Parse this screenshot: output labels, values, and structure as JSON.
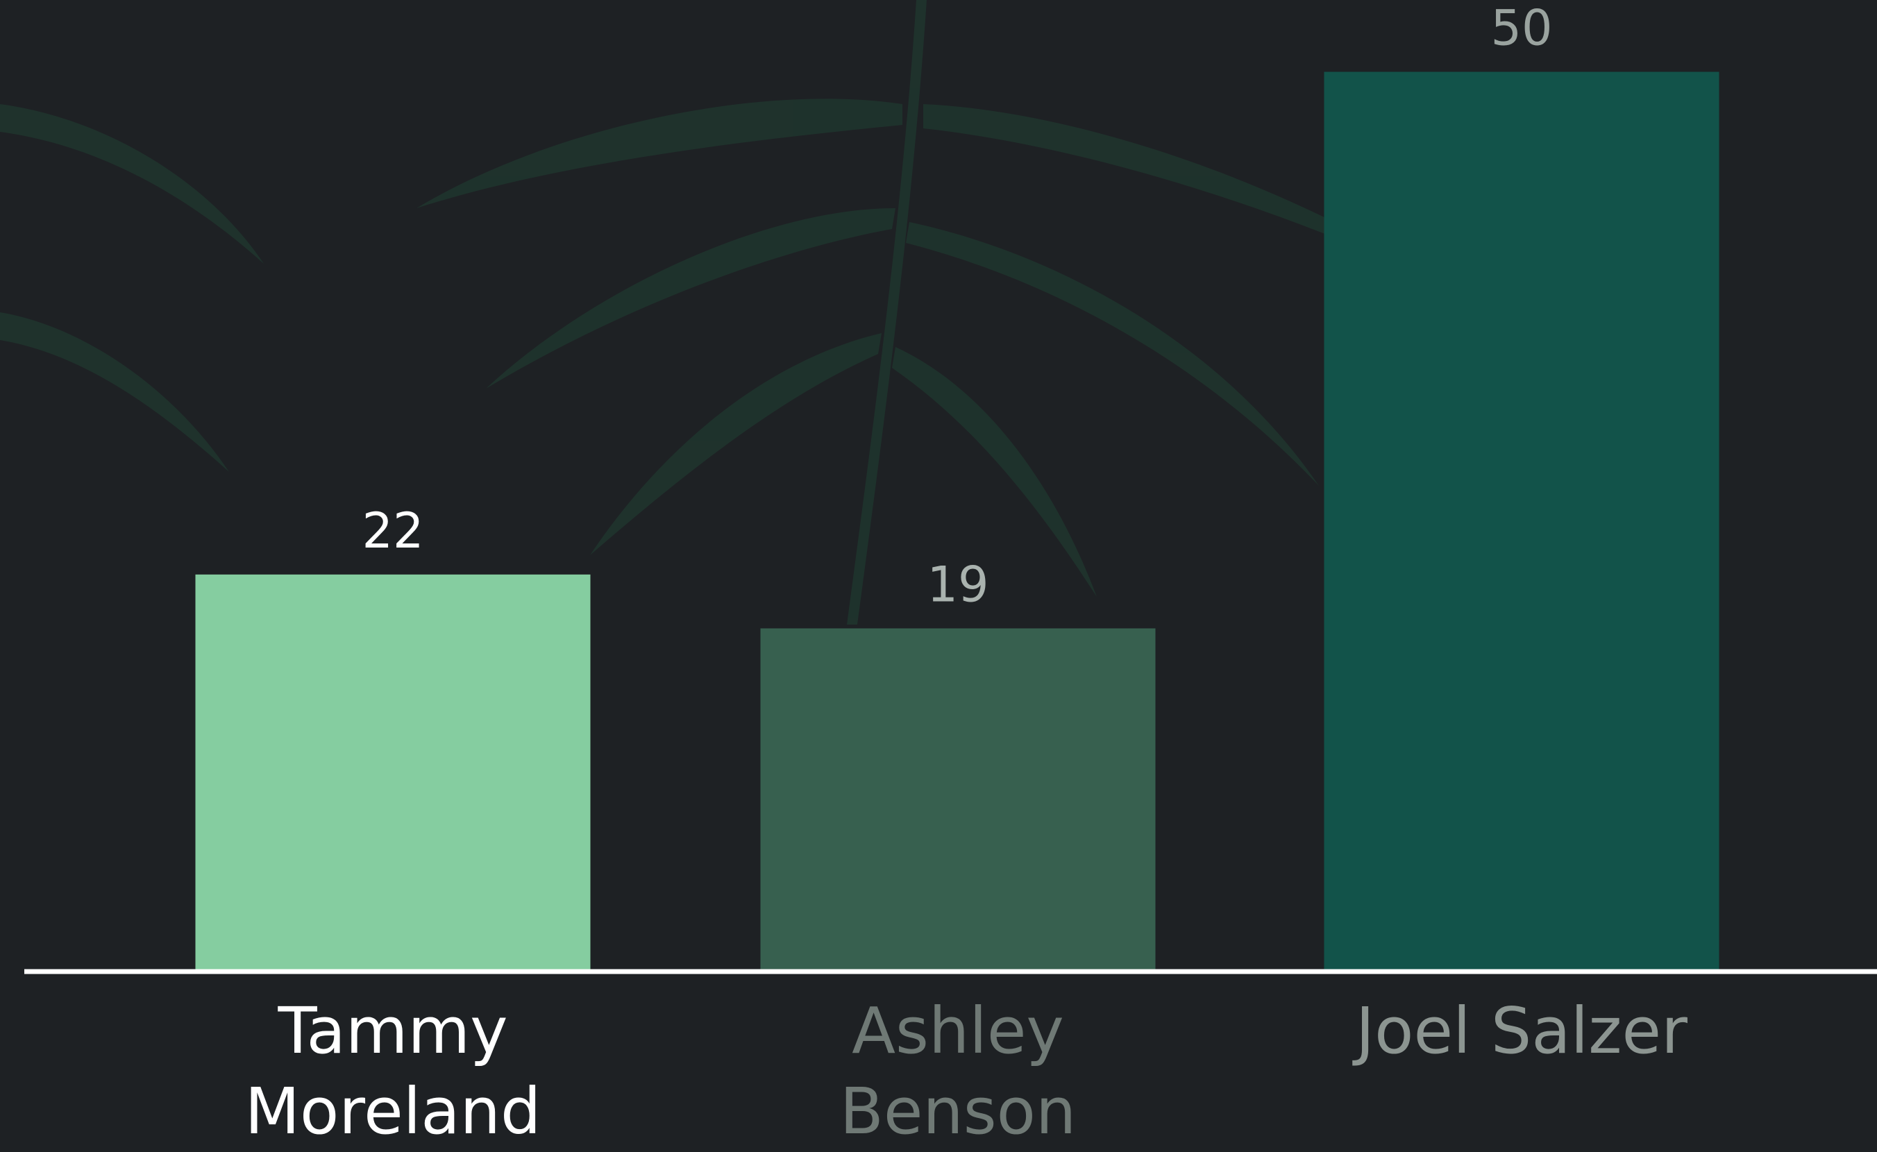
{
  "chart_data": {
    "type": "bar",
    "categories": [
      "Tammy Moreland",
      "Ashley Benson",
      "Joel Salzer"
    ],
    "values": [
      22,
      19,
      50
    ],
    "colors": [
      "#85cda0",
      "#37604f",
      "#12534a"
    ],
    "ylim": [
      0,
      54
    ]
  }
}
